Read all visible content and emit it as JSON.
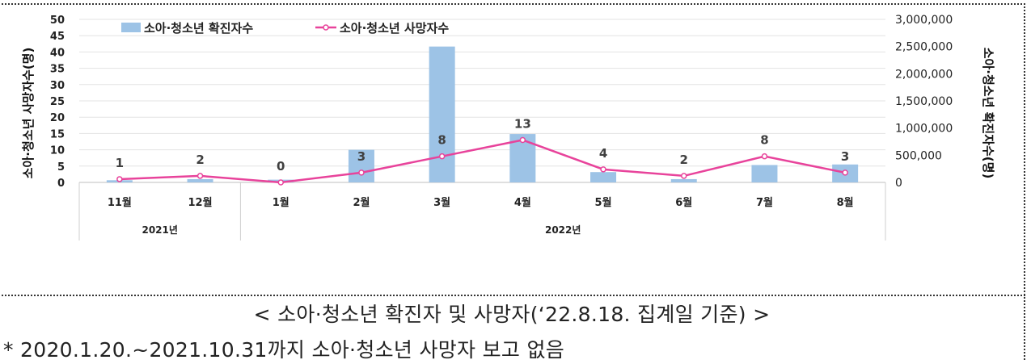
{
  "chart_data": {
    "type": "bar+line",
    "categories": [
      "11월",
      "12월",
      "1월",
      "2월",
      "3월",
      "4월",
      "5월",
      "6월",
      "7월",
      "8월"
    ],
    "groups": [
      {
        "label": "2021년",
        "from": 0,
        "to": 1
      },
      {
        "label": "2022년",
        "from": 2,
        "to": 9
      }
    ],
    "series": [
      {
        "name": "소아·청소년 확진자수",
        "kind": "bar",
        "axis": "right",
        "color": "#9dc3e6",
        "values": [
          40000,
          60000,
          50000,
          600000,
          2500000,
          890000,
          190000,
          60000,
          320000,
          330000
        ]
      },
      {
        "name": "소아·청소년 사망자수",
        "kind": "line",
        "axis": "left",
        "color": "#e8439b",
        "values": [
          1,
          2,
          0,
          3,
          8,
          13,
          4,
          2,
          8,
          3
        ]
      }
    ],
    "y_left": {
      "label": "소아·청소년 사망자수(명)",
      "min": 0,
      "max": 50,
      "ticks": [
        "0",
        "5",
        "10",
        "15",
        "20",
        "25",
        "30",
        "35",
        "40",
        "45",
        "50"
      ]
    },
    "y_right": {
      "label": "소아·청소년 확진자수(명)",
      "min": 0,
      "max": 3000000,
      "ticks": [
        "0",
        "500,000",
        "1,000,000",
        "1,500,000",
        "2,000,000",
        "2,500,000",
        "3,000,000"
      ]
    },
    "data_labels": [
      "1",
      "2",
      "0",
      "3",
      "8",
      "13",
      "4",
      "2",
      "8",
      "3"
    ],
    "legend_position": "top-left",
    "grid": true
  },
  "caption": "< 소아·청소년 확진자 및 사망자(‘22.8.18. 집계일 기준) >",
  "note": "* 2020.1.20.~2021.10.31까지 소아·청소년 사망자 보고 없음"
}
